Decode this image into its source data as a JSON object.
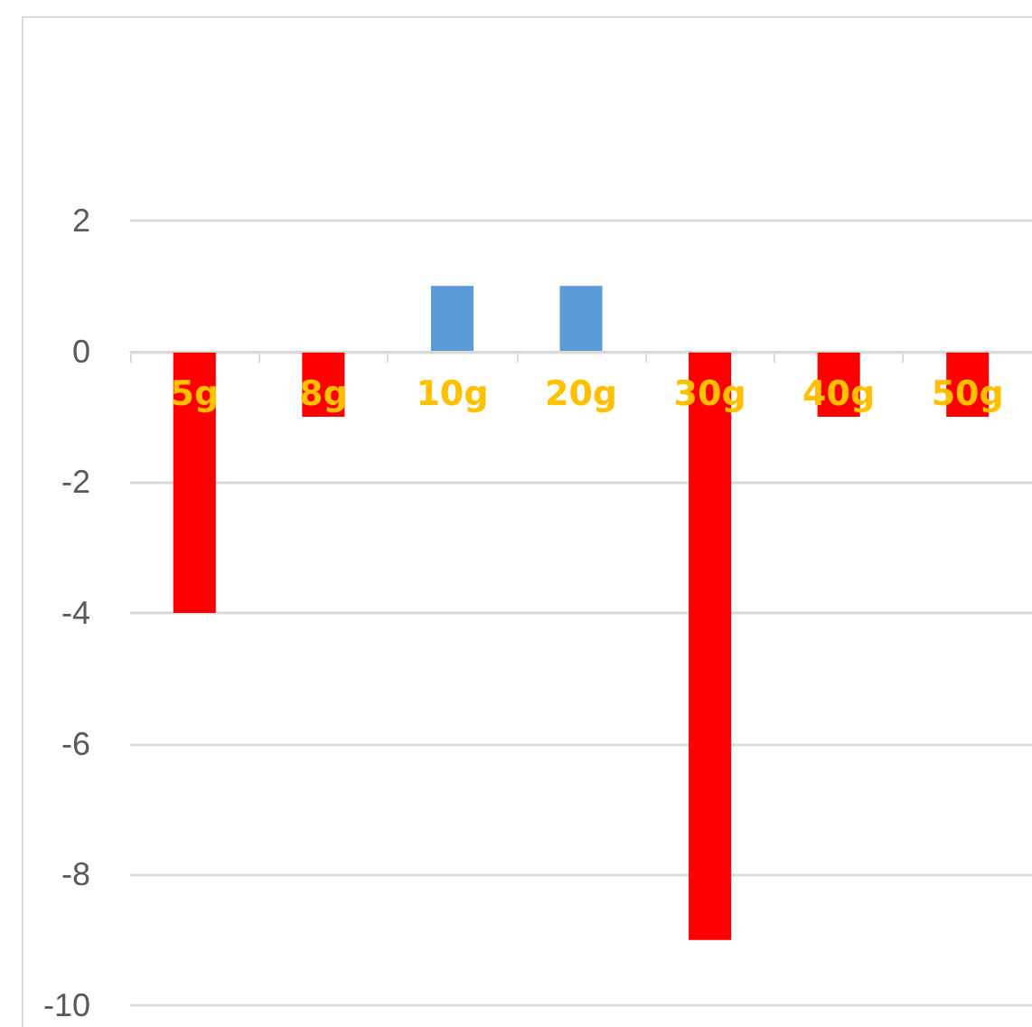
{
  "chart_data": {
    "type": "bar",
    "categories": [
      "5g",
      "8g",
      "10g",
      "20g",
      "30g",
      "40g",
      "50g"
    ],
    "values": [
      -4,
      -1,
      1,
      1,
      -9,
      -1,
      -1
    ],
    "colors": [
      "#ff0000",
      "#ff0000",
      "#5b9bd5",
      "#5b9bd5",
      "#ff0000",
      "#ff0000",
      "#ff0000"
    ],
    "ylim": [
      -10,
      2
    ],
    "yticks": [
      -10,
      -8,
      -6,
      -4,
      -2,
      0,
      2
    ],
    "grid": "y"
  }
}
